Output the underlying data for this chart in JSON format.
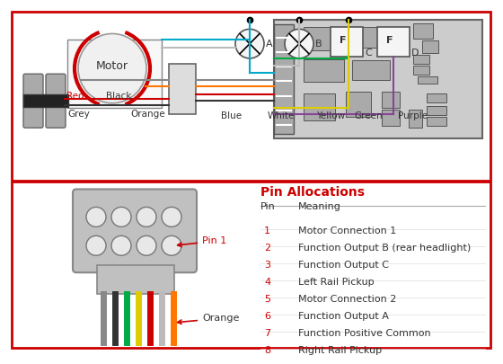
{
  "bg_color": "#ffffff",
  "border_color": "#cc0000",
  "motor_label": "Motor",
  "motor_arc_color": "#cc0000",
  "motor_left_label": "Grey",
  "motor_right_label": "Orange",
  "lamp_labels": [
    "A",
    "B"
  ],
  "lamp_color_labels": [
    "Blue",
    "White"
  ],
  "func_labels": [
    [
      "F",
      "C"
    ],
    [
      "F",
      "D"
    ]
  ],
  "func_color_labels": [
    "Yellow",
    "Green",
    "Purple"
  ],
  "rail_red_label": "Red",
  "rail_black_label": "Black",
  "pin_title": "Pin Allocations",
  "pin_header": [
    "Pin",
    "Meaning"
  ],
  "pin_data": [
    [
      "1",
      "Motor Connection 1"
    ],
    [
      "2",
      "Function Output B (rear headlight)"
    ],
    [
      "3",
      "Function Output C"
    ],
    [
      "4",
      "Left Rail Pickup"
    ],
    [
      "5",
      "Motor Connection 2"
    ],
    [
      "6",
      "Function Output A"
    ],
    [
      "7",
      "Function Positive Common"
    ],
    [
      "8",
      "Right Rail Pickup"
    ]
  ],
  "red_pins": [
    "1",
    "2",
    "3",
    "4",
    "5",
    "6",
    "7",
    "8"
  ],
  "pin1_label": "Pin 1",
  "orange_label": "Orange",
  "wire_colors_top": [
    "#888888",
    "#ff7700",
    "#cc0000",
    "#000000",
    "#00aacc",
    "#bbbbbb",
    "#ddcc00",
    "#00aa44",
    "#884499"
  ],
  "wire_colors_bottom": [
    "#888888",
    "#000000",
    "#00aa44",
    "#ddcc00",
    "#cc0000",
    "#bbbbbb",
    "#ff7700"
  ],
  "connector_face": "#bbbbbb",
  "connector_edge": "#888888",
  "decoder_face": "#cccccc",
  "decoder_edge": "#777777"
}
